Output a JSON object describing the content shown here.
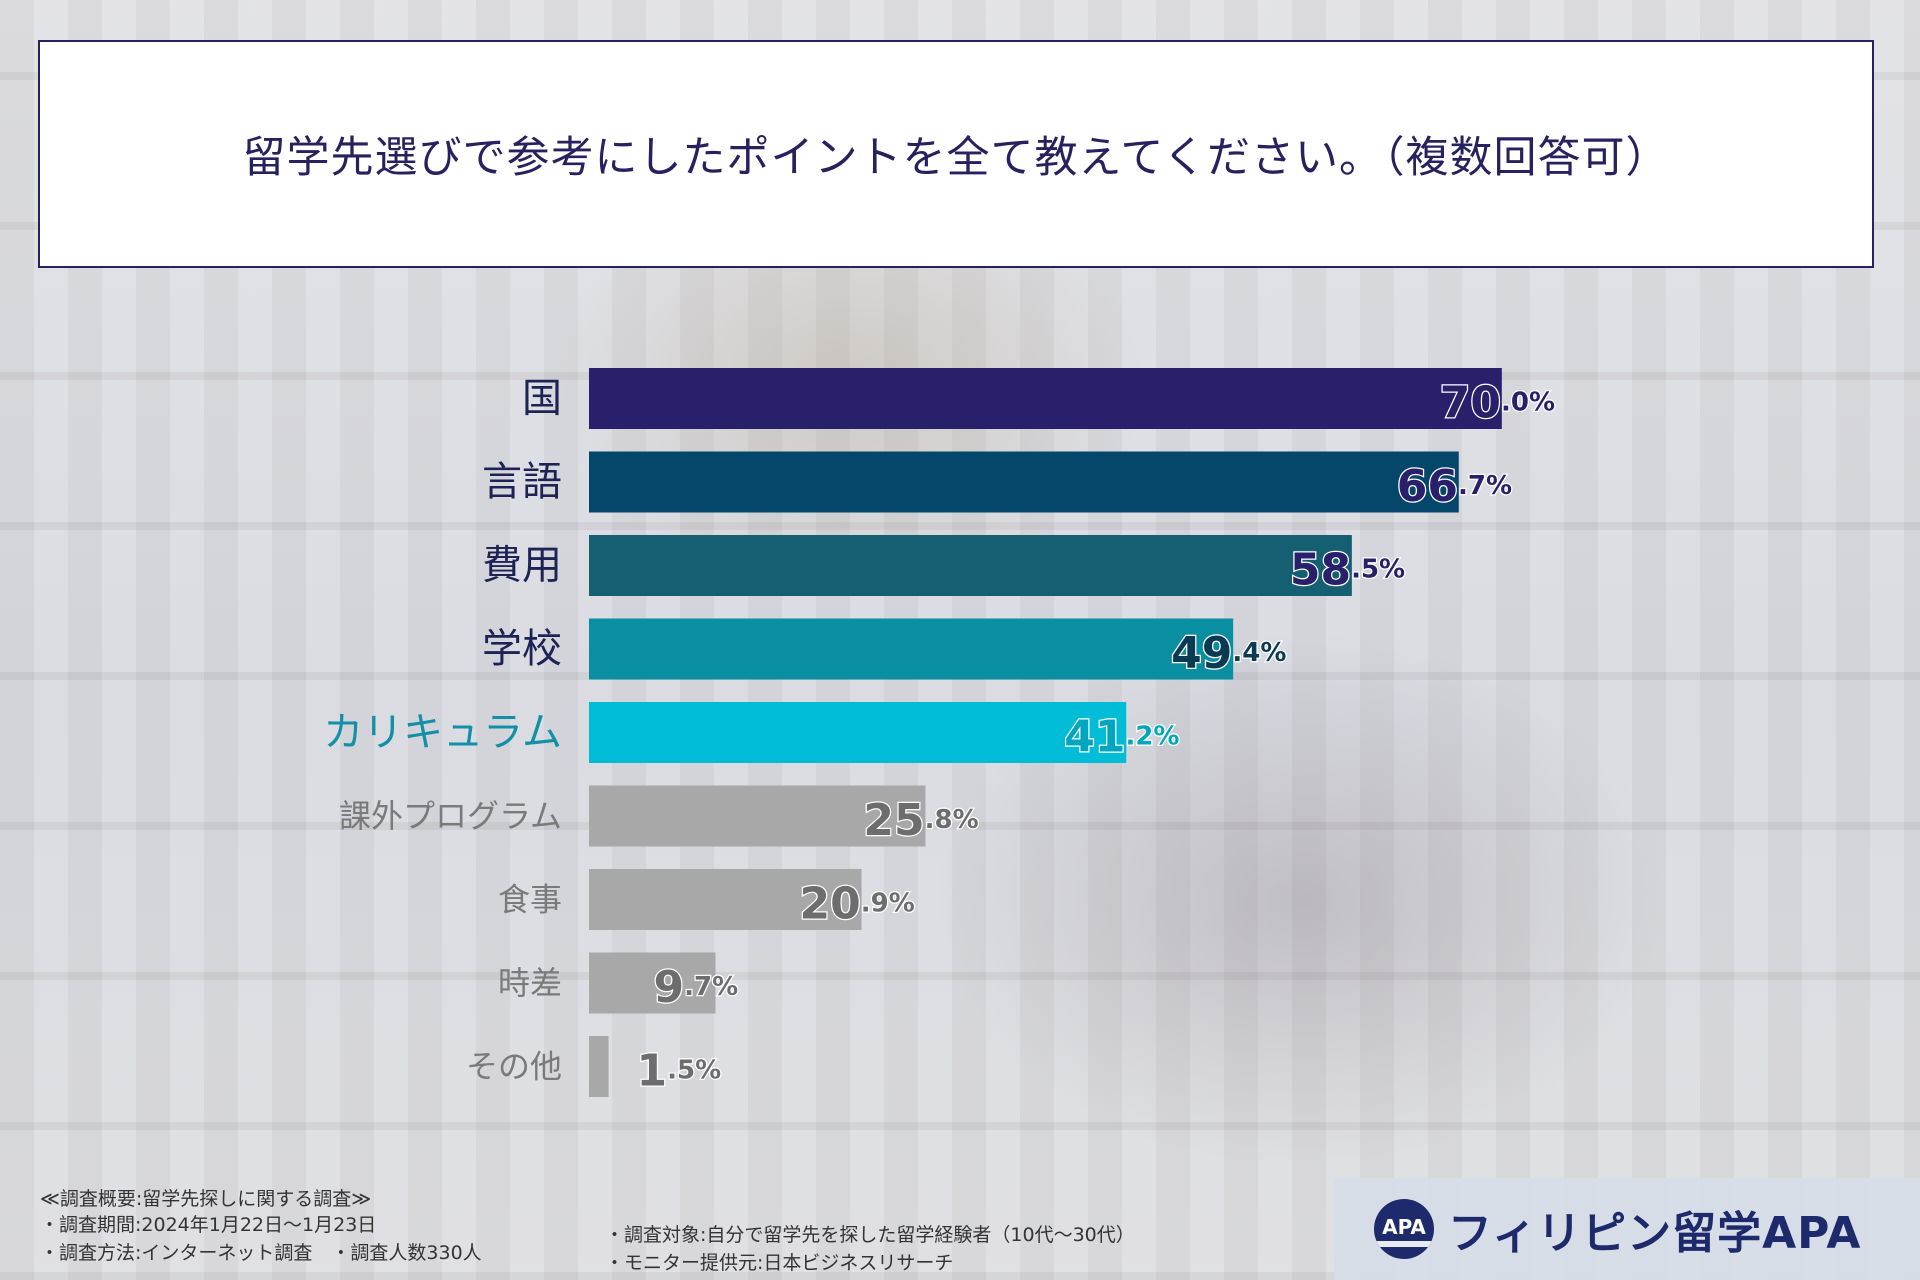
{
  "title": "留学先選びで参考にしたポイントを全て教えてください。（複数回答可）",
  "chart_data": {
    "type": "bar",
    "orientation": "horizontal",
    "title": "留学先選びで参考にしたポイントを全て教えてください。（複数回答可）",
    "unit": "%",
    "xlim": [
      0,
      100
    ],
    "categories": [
      "国",
      "言語",
      "費用",
      "学校",
      "カリキュラム",
      "課外プログラム",
      "食事",
      "時差",
      "その他"
    ],
    "values": [
      70.0,
      66.7,
      58.5,
      49.4,
      41.2,
      25.8,
      20.9,
      9.7,
      1.5
    ],
    "value_labels": [
      {
        "int": "70",
        "dec": ".0%"
      },
      {
        "int": "66",
        "dec": ".7%"
      },
      {
        "int": "58",
        "dec": ".5%"
      },
      {
        "int": "49",
        "dec": ".4%"
      },
      {
        "int": "41",
        "dec": ".2%"
      },
      {
        "int": "25",
        "dec": ".8%"
      },
      {
        "int": "20",
        "dec": ".9%"
      },
      {
        "int": "9",
        "dec": ".7%"
      },
      {
        "int": "1",
        "dec": ".5%"
      }
    ],
    "bar_colors": [
      "#29206b",
      "#04476a",
      "#155f72",
      "#0a8ea2",
      "#00bcd6",
      "#a8a8a8",
      "#a8a8a8",
      "#a8a8a8",
      "#a8a8a8"
    ],
    "label_colors": [
      "#1e2355",
      "#1e2355",
      "#1e2355",
      "#1e2355",
      "#138fa8",
      "#7a7a7a",
      "#7a7a7a",
      "#7a7a7a",
      "#7a7a7a"
    ],
    "value_colors": [
      "#29206b",
      "#29206b",
      "#29206b",
      "#0a3b52",
      "#00a5c0",
      "#6d6d6d",
      "#6d6d6d",
      "#6d6d6d",
      "#6d6d6d"
    ],
    "grid": false,
    "legend": "none"
  },
  "notes": {
    "overview": "≪調査概要:留学先探しに関する調査≫",
    "period": "・調査期間:2024年1月22日～1月23日",
    "method": "・調査方法:インターネット調査　・調査人数330人",
    "target": "・調査対象:自分で留学先を探した留学経験者（10代～30代）",
    "provider": "・モニター提供元:日本ビジネスリサーチ"
  },
  "brand": {
    "logo_text": "APA",
    "name": "フィリピン留学APA",
    "icon": "apa-globe-logo"
  }
}
